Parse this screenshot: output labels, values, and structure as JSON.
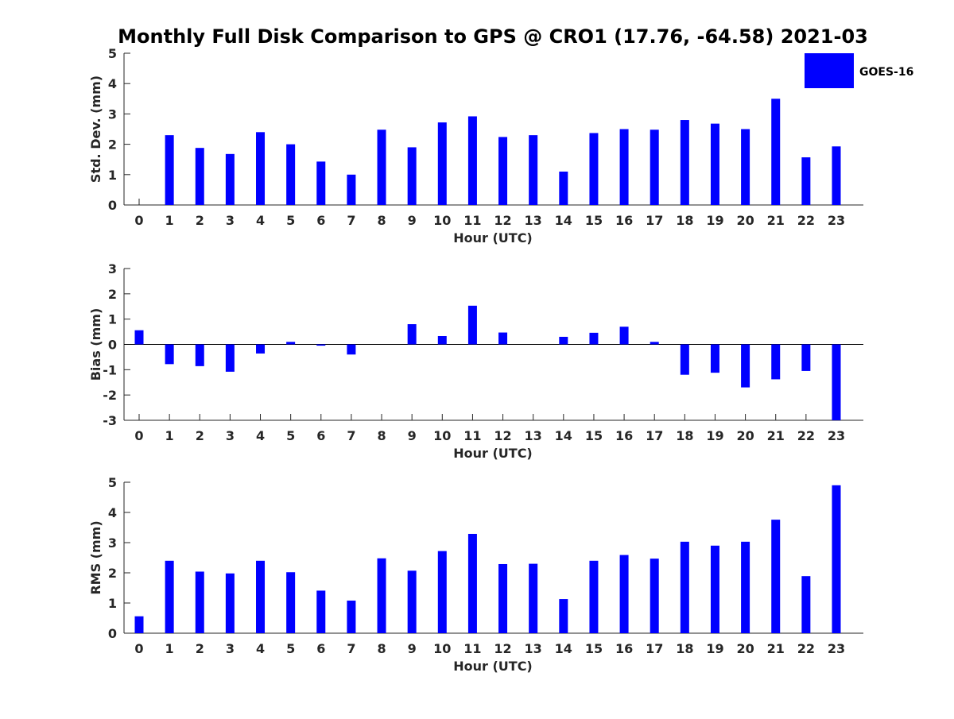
{
  "title": "Monthly Full Disk Comparison to GPS @ CRO1 (17.76, -64.58) 2021-03",
  "legend": {
    "label": "GOES-16",
    "color": "#0000ff"
  },
  "chart_data": [
    {
      "type": "bar",
      "xlabel": "Hour (UTC)",
      "ylabel": "Std. Dev. (mm)",
      "ylim": [
        0,
        5
      ],
      "yticks": [
        0,
        1,
        2,
        3,
        4,
        5
      ],
      "categories": [
        "0",
        "1",
        "2",
        "3",
        "4",
        "5",
        "6",
        "7",
        "8",
        "9",
        "10",
        "11",
        "12",
        "13",
        "14",
        "15",
        "16",
        "17",
        "18",
        "19",
        "20",
        "21",
        "22",
        "23"
      ],
      "series": [
        {
          "name": "GOES-16",
          "color": "#0000ff",
          "values": [
            0,
            2.3,
            1.88,
            1.68,
            2.4,
            2.0,
            1.43,
            1.0,
            2.48,
            1.9,
            2.72,
            2.92,
            2.24,
            2.3,
            1.1,
            2.37,
            2.5,
            2.48,
            2.8,
            2.68,
            2.5,
            3.5,
            1.57,
            1.93
          ]
        }
      ]
    },
    {
      "type": "bar",
      "xlabel": "Hour (UTC)",
      "ylabel": "Bias (mm)",
      "ylim": [
        -3,
        3
      ],
      "yticks": [
        -3,
        -2,
        -1,
        0,
        1,
        2,
        3
      ],
      "categories": [
        "0",
        "1",
        "2",
        "3",
        "4",
        "5",
        "6",
        "7",
        "8",
        "9",
        "10",
        "11",
        "12",
        "13",
        "14",
        "15",
        "16",
        "17",
        "18",
        "19",
        "20",
        "21",
        "22",
        "23"
      ],
      "series": [
        {
          "name": "GOES-16",
          "color": "#0000ff",
          "values": [
            0.56,
            -0.78,
            -0.86,
            -1.08,
            -0.36,
            0.1,
            -0.05,
            -0.4,
            0,
            0.8,
            0.33,
            1.53,
            0.47,
            0,
            0.3,
            0.46,
            0.7,
            0.1,
            -1.2,
            -1.12,
            -1.7,
            -1.38,
            -1.05,
            -3.0
          ]
        }
      ]
    },
    {
      "type": "bar",
      "xlabel": "Hour (UTC)",
      "ylabel": "RMS (mm)",
      "ylim": [
        0,
        5
      ],
      "yticks": [
        0,
        1,
        2,
        3,
        4,
        5
      ],
      "categories": [
        "0",
        "1",
        "2",
        "3",
        "4",
        "5",
        "6",
        "7",
        "8",
        "9",
        "10",
        "11",
        "12",
        "13",
        "14",
        "15",
        "16",
        "17",
        "18",
        "19",
        "20",
        "21",
        "22",
        "23"
      ],
      "series": [
        {
          "name": "GOES-16",
          "color": "#0000ff",
          "values": [
            0.56,
            2.4,
            2.04,
            1.98,
            2.4,
            2.02,
            1.41,
            1.08,
            2.48,
            2.07,
            2.72,
            3.29,
            2.29,
            2.3,
            1.13,
            2.4,
            2.59,
            2.47,
            3.03,
            2.9,
            3.03,
            3.76,
            1.89,
            4.9
          ]
        }
      ]
    }
  ]
}
